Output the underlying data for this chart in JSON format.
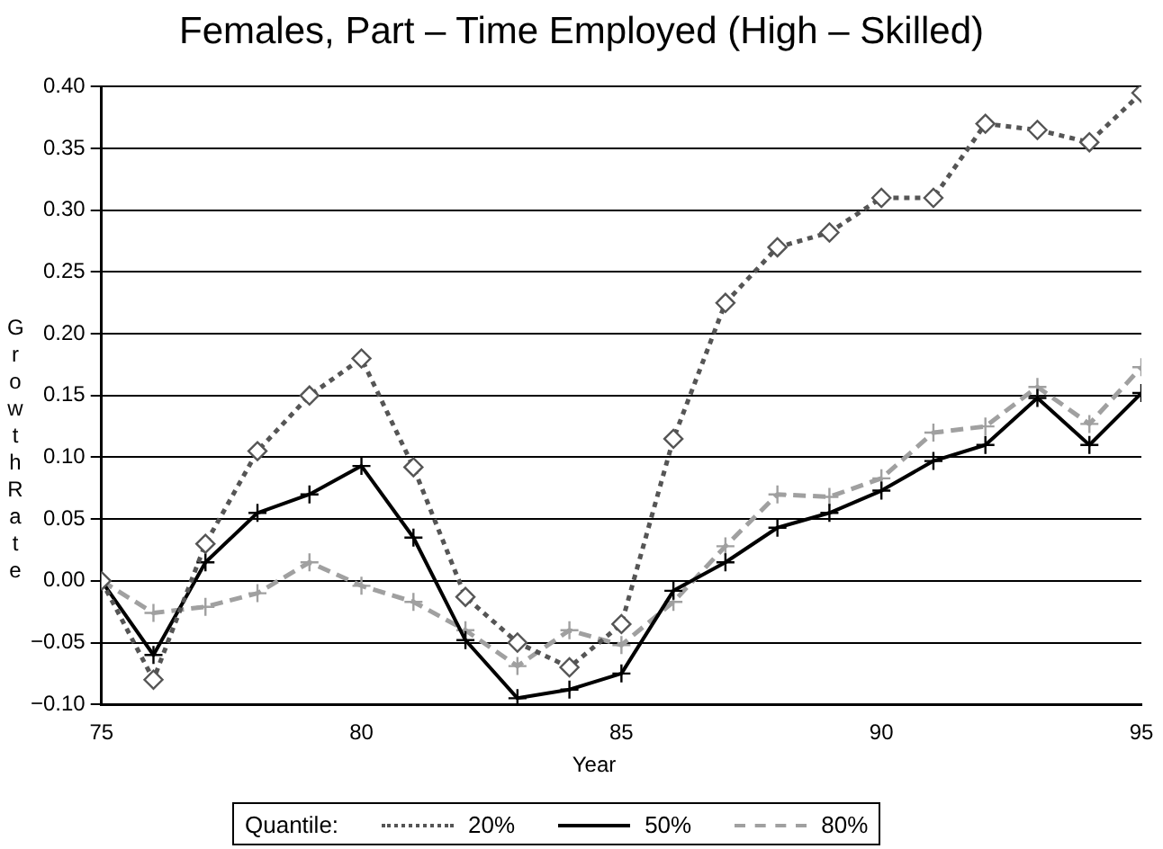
{
  "chart_data": {
    "type": "line",
    "title": "Females, Part – Time Employed (High – Skilled)",
    "xlabel": "Year",
    "ylabel": "Growth Rate",
    "legend_title": "Quantile:",
    "legend": "bottom",
    "grid": "y",
    "x": [
      75,
      76,
      77,
      78,
      79,
      80,
      81,
      82,
      83,
      84,
      85,
      86,
      87,
      88,
      89,
      90,
      91,
      92,
      93,
      94,
      95
    ],
    "xlim": [
      75,
      95
    ],
    "xticks": [
      75,
      80,
      85,
      90,
      95
    ],
    "ylim": [
      -0.1,
      0.4
    ],
    "yticks": [
      {
        "value": -0.1,
        "label": "−0.10"
      },
      {
        "value": -0.05,
        "label": "−0.05"
      },
      {
        "value": 0,
        "label": "0.00"
      },
      0.05,
      {
        "value": 0.1,
        "label": "0.10"
      },
      0.15,
      {
        "value": 0.2,
        "label": "0.20"
      },
      0.25,
      {
        "value": 0.3,
        "label": "0.30"
      },
      0.35,
      {
        "value": 0.4,
        "label": "0.40"
      }
    ],
    "series": [
      {
        "name": "20%",
        "color": "#555555",
        "marker": "diamond",
        "line_style": "dotted",
        "values": [
          0,
          -0.08,
          0.03,
          0.105,
          0.15,
          0.18,
          0.092,
          -0.013,
          -0.05,
          -0.07,
          -0.035,
          0.115,
          0.225,
          0.27,
          0.282,
          0.31,
          0.31,
          0.37,
          0.365,
          0.355,
          0.395
        ]
      },
      {
        "name": "50%",
        "color": "#000000",
        "marker": "cross",
        "line_style": "solid",
        "values": [
          0,
          -0.06,
          0.015,
          0.055,
          0.07,
          0.093,
          0.035,
          -0.048,
          -0.095,
          -0.088,
          -0.075,
          -0.008,
          0.015,
          0.043,
          0.055,
          0.073,
          0.097,
          0.11,
          0.148,
          0.11,
          0.152
        ]
      },
      {
        "name": "80%",
        "color": "#a0a0a0",
        "marker": "cross",
        "line_style": "dashed",
        "values": [
          0,
          -0.026,
          -0.021,
          -0.01,
          0.015,
          -0.004,
          -0.017,
          -0.04,
          -0.069,
          -0.04,
          -0.052,
          -0.017,
          0.028,
          0.07,
          0.068,
          0.083,
          0.12,
          0.125,
          0.157,
          0.127,
          0.173
        ]
      }
    ]
  }
}
